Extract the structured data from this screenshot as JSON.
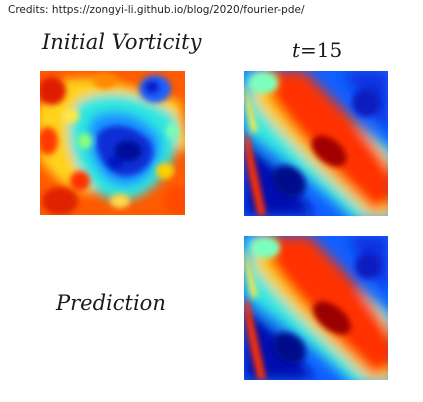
{
  "credits": "Credits: https://zongyi-li.github.io/blog/2020/fourier-pde/",
  "labels": {
    "initial": "Initial Vorticity",
    "t_var": "t",
    "t_eq": "=15",
    "prediction": "Prediction"
  },
  "colors": {
    "colormap": "jet",
    "background": "#ffffff"
  }
}
